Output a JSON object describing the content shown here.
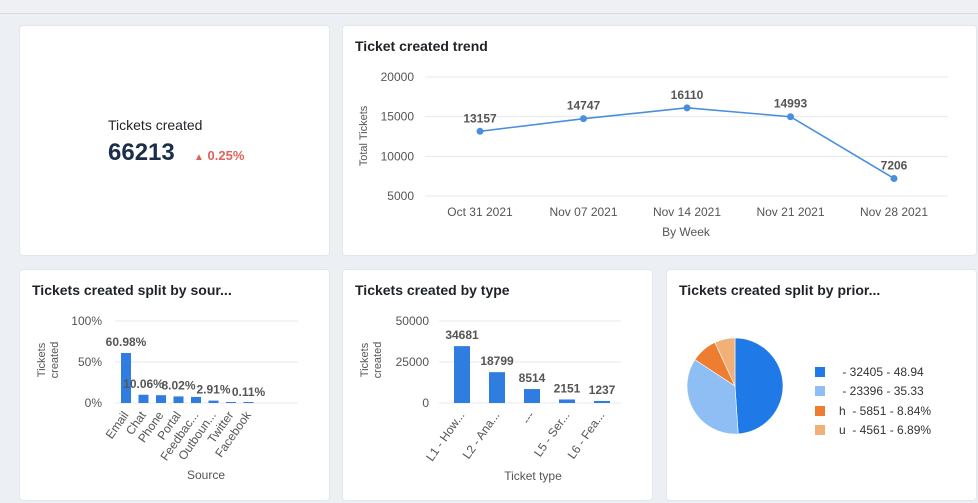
{
  "kpi": {
    "title": "Tickets created",
    "value": "66213",
    "change": "0.25%",
    "change_color": "#e0635b"
  },
  "trend": {
    "title": "Ticket created trend",
    "ylabel": "Total Tickets",
    "xlabel": "By Week"
  },
  "source_chart": {
    "title": "Tickets created split by sour..."
  },
  "type_chart": {
    "title": "Tickets created by type"
  },
  "priority_chart": {
    "title": "Tickets created split by prior..."
  },
  "chart_data": [
    {
      "id": "trend",
      "type": "line",
      "title": "Ticket created trend",
      "xlabel": "By Week",
      "ylabel": "Total Tickets",
      "categories": [
        "Oct 31 2021",
        "Nov 07 2021",
        "Nov 14 2021",
        "Nov 21 2021",
        "Nov 28 2021"
      ],
      "values": [
        13157,
        14747,
        16110,
        14993,
        7206
      ],
      "labels": [
        "13157",
        "14747",
        "16110",
        "14993",
        "7206"
      ],
      "yticks": [
        "5000",
        "10000",
        "15000",
        "20000"
      ],
      "ytick_values": [
        5000,
        10000,
        15000,
        20000
      ],
      "ylim": [
        5000,
        20000
      ],
      "color": "#4a8fde"
    },
    {
      "id": "source",
      "type": "bar",
      "title": "Tickets created split by sour...",
      "xlabel": "Source",
      "ylabel": "Tickets created",
      "categories": [
        "Email",
        "Chat",
        "Phone",
        "Portal",
        "Feedbac...",
        "Outboun...",
        "Twitter",
        "Facebook"
      ],
      "values": [
        60.98,
        10.06,
        9.5,
        8.02,
        7.4,
        2.91,
        0.5,
        0.11
      ],
      "labels": [
        "60.98%",
        "10.06%",
        "",
        "8.02%",
        "",
        "2.91%",
        "",
        "0.11%"
      ],
      "yticks": [
        "0%",
        "50%",
        "100%"
      ],
      "ytick_values": [
        0,
        50,
        100
      ],
      "ylim": [
        0,
        100
      ],
      "color": "#2f7de1"
    },
    {
      "id": "type",
      "type": "bar",
      "title": "Tickets created by type",
      "xlabel": "Ticket type",
      "ylabel": "Tickets created",
      "categories": [
        "L1 - How...",
        "L2 - Ana...",
        "---",
        "L5 - Ser...",
        "L6 - Fea..."
      ],
      "values": [
        34681,
        18799,
        8514,
        2151,
        1237
      ],
      "labels": [
        "34681",
        "18799",
        "8514",
        "2151",
        "1237"
      ],
      "yticks": [
        "0",
        "25000",
        "50000"
      ],
      "ytick_values": [
        0,
        25000,
        50000
      ],
      "ylim": [
        0,
        50000
      ],
      "color": "#2f7de1"
    },
    {
      "id": "priority",
      "type": "pie",
      "title": "Tickets created split by prior...",
      "slices": [
        {
          "key": "",
          "value": 32405,
          "percent": 48.94,
          "color": "#1f7ae8",
          "legend": " - 32405 - 48.94"
        },
        {
          "key": "",
          "value": 23396,
          "percent": 35.33,
          "color": "#8fbef5",
          "legend": " - 23396 - 35.33"
        },
        {
          "key": "h",
          "value": 5851,
          "percent": 8.84,
          "color": "#ed7d31",
          "legend": "h  - 5851 - 8.84%"
        },
        {
          "key": "u",
          "value": 4561,
          "percent": 6.89,
          "color": "#f2b079",
          "legend": "u  - 4561 - 6.89%"
        }
      ]
    }
  ]
}
